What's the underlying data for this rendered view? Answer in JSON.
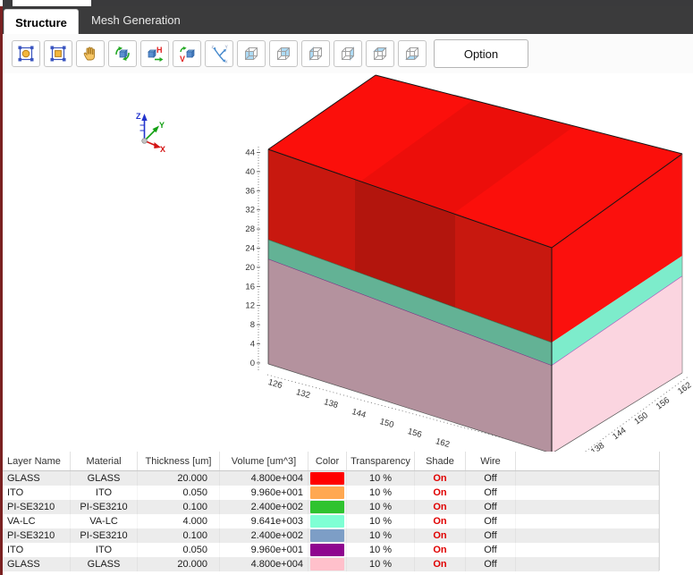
{
  "window": {
    "left_accent_color": "#7a2121",
    "chrome_color": "#3a3a3c"
  },
  "tabs": [
    {
      "label": "Structure",
      "active": true
    },
    {
      "label": "Mesh Generation",
      "active": false
    }
  ],
  "toolbar": {
    "buttons": [
      {
        "name": "fit-view"
      },
      {
        "name": "zoom-window"
      },
      {
        "name": "pan"
      },
      {
        "name": "rotate-view"
      },
      {
        "name": "flip-horizontal"
      },
      {
        "name": "flip-vertical"
      },
      {
        "name": "isometric-view"
      },
      {
        "name": "front-view"
      },
      {
        "name": "back-view"
      },
      {
        "name": "left-view"
      },
      {
        "name": "right-view"
      },
      {
        "name": "top-view"
      },
      {
        "name": "bottom-view"
      }
    ],
    "option_label": "Option"
  },
  "viewport": {
    "triad": {
      "x_label": "X",
      "y_label": "Y",
      "z_label": "Z",
      "x_color": "#d41414",
      "y_color": "#12a012",
      "z_color": "#2233cc"
    },
    "z_axis_ticks": [
      "44",
      "40",
      "36",
      "32",
      "28",
      "24",
      "20",
      "16",
      "12",
      "8",
      "4",
      "0"
    ],
    "x_axis_ticks": [
      "126",
      "132",
      "138",
      "144",
      "150",
      "156",
      "162"
    ],
    "y_axis_ticks": [
      "138",
      "144",
      "150",
      "156",
      "162"
    ],
    "box_colors": {
      "top": "#fb0f0b",
      "front_red": "#c8180f",
      "right_red": "#fb100d",
      "front_teal": "#63b295",
      "right_teal": "#7deccb",
      "front_glass": "#b4929e",
      "right_glass": "#fbd5e0",
      "front_purple_line": "#7b2f86",
      "right_purple_line": "#a94fbd",
      "edge": "#151515"
    }
  },
  "table": {
    "headers": [
      "Layer Name",
      "Material",
      "Thickness [um]",
      "Volume [um^3]",
      "Color",
      "Transparency",
      "Shade",
      "Wire"
    ],
    "shade_on_color": "#e00000",
    "rows": [
      {
        "layer": "GLASS",
        "material": "GLASS",
        "thickness": "20.000",
        "volume": "4.800e+004",
        "color": "#ff0000",
        "transparency": "10 %",
        "shade": "On",
        "wire": "Off"
      },
      {
        "layer": "ITO",
        "material": "ITO",
        "thickness": "0.050",
        "volume": "9.960e+001",
        "color": "#ffa851",
        "transparency": "10 %",
        "shade": "On",
        "wire": "Off"
      },
      {
        "layer": "PI-SE3210",
        "material": "PI-SE3210",
        "thickness": "0.100",
        "volume": "2.400e+002",
        "color": "#2fc32f",
        "transparency": "10 %",
        "shade": "On",
        "wire": "Off"
      },
      {
        "layer": "VA-LC",
        "material": "VA-LC",
        "thickness": "4.000",
        "volume": "9.641e+003",
        "color": "#7fffd4",
        "transparency": "10 %",
        "shade": "On",
        "wire": "Off"
      },
      {
        "layer": "PI-SE3210",
        "material": "PI-SE3210",
        "thickness": "0.100",
        "volume": "2.400e+002",
        "color": "#7d9ec6",
        "transparency": "10 %",
        "shade": "On",
        "wire": "Off"
      },
      {
        "layer": "ITO",
        "material": "ITO",
        "thickness": "0.050",
        "volume": "9.960e+001",
        "color": "#8f068f",
        "transparency": "10 %",
        "shade": "On",
        "wire": "Off"
      },
      {
        "layer": "GLASS",
        "material": "GLASS",
        "thickness": "20.000",
        "volume": "4.800e+004",
        "color": "#ffc0cb",
        "transparency": "10 %",
        "shade": "On",
        "wire": "Off"
      }
    ]
  }
}
